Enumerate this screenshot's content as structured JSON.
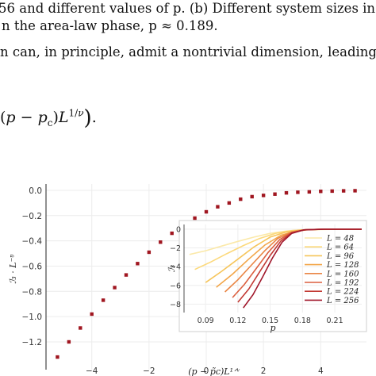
{
  "paper": {
    "line1": "56 and different values of p. (b) Different system sizes in",
    "line2": "n the area-law phase, p ≈ 0.189.",
    "line3": "n can, in principle, admit a nontrivial dimension, leading",
    "equation": "(p − pc)L1/ν)."
  },
  "chart_data": [
    {
      "type": "scatter",
      "xlabel": "(p − p̃c)L^{1/ν}",
      "ylabel": "I3 · L^{−η}",
      "xlim": [
        -5.6,
        5.6
      ],
      "ylim": [
        -1.42,
        0.05
      ],
      "x_ticks": [
        "−4",
        "−2",
        "0",
        "2",
        "4"
      ],
      "y_ticks": [
        "0.0",
        "−0.2",
        "−0.4",
        "−0.6",
        "−0.8",
        "−1.0",
        "−1.2"
      ],
      "grid": true,
      "color": "#a01620",
      "points": [
        [
          -5.2,
          -1.32
        ],
        [
          -4.8,
          -1.2
        ],
        [
          -4.4,
          -1.09
        ],
        [
          -4.0,
          -0.98
        ],
        [
          -3.6,
          -0.87
        ],
        [
          -3.2,
          -0.77
        ],
        [
          -2.8,
          -0.67
        ],
        [
          -2.4,
          -0.58
        ],
        [
          -2.0,
          -0.49
        ],
        [
          -1.6,
          -0.41
        ],
        [
          -1.2,
          -0.34
        ],
        [
          -0.8,
          -0.27
        ],
        [
          -0.4,
          -0.22
        ],
        [
          0.0,
          -0.17
        ],
        [
          0.4,
          -0.13
        ],
        [
          0.8,
          -0.1
        ],
        [
          1.2,
          -0.07
        ],
        [
          1.6,
          -0.05
        ],
        [
          2.0,
          -0.04
        ],
        [
          2.4,
          -0.03
        ],
        [
          2.8,
          -0.02
        ],
        [
          3.2,
          -0.015
        ],
        [
          3.6,
          -0.012
        ],
        [
          4.0,
          -0.008
        ],
        [
          4.4,
          -0.006
        ],
        [
          4.8,
          -0.004
        ],
        [
          5.2,
          -0.003
        ]
      ]
    },
    {
      "type": "line",
      "xlabel": "p",
      "ylabel": "I3",
      "xlim": [
        0.07,
        0.235
      ],
      "ylim": [
        -8.9,
        0.5
      ],
      "x_ticks": [
        "0.09",
        "0.12",
        "0.15",
        "0.18",
        "0.21"
      ],
      "y_ticks": [
        "0",
        "−2",
        "−4",
        "−6",
        "−8"
      ],
      "legend_position": "right",
      "series": [
        {
          "name": "L = 48",
          "color": "#fbe9a9",
          "values": [
            [
              0.075,
              -2.7
            ],
            [
              0.09,
              -2.3
            ],
            [
              0.105,
              -1.8
            ],
            [
              0.12,
              -1.3
            ],
            [
              0.135,
              -0.85
            ],
            [
              0.15,
              -0.45
            ],
            [
              0.165,
              -0.2
            ],
            [
              0.18,
              -0.08
            ],
            [
              0.2,
              -0.03
            ],
            [
              0.22,
              -0.01
            ],
            [
              0.235,
              0
            ]
          ]
        },
        {
          "name": "L = 64",
          "color": "#fcd97b",
          "values": [
            [
              0.08,
              -4.3
            ],
            [
              0.095,
              -3.5
            ],
            [
              0.11,
              -2.6
            ],
            [
              0.125,
              -1.75
            ],
            [
              0.14,
              -1.0
            ],
            [
              0.155,
              -0.45
            ],
            [
              0.17,
              -0.15
            ],
            [
              0.185,
              -0.05
            ],
            [
              0.2,
              -0.02
            ],
            [
              0.22,
              0
            ],
            [
              0.235,
              0
            ]
          ]
        },
        {
          "name": "L = 96",
          "color": "#f6c55a",
          "values": [
            [
              0.09,
              -5.7
            ],
            [
              0.105,
              -4.5
            ],
            [
              0.12,
              -3.2
            ],
            [
              0.135,
              -1.9
            ],
            [
              0.15,
              -0.85
            ],
            [
              0.165,
              -0.3
            ],
            [
              0.18,
              -0.08
            ],
            [
              0.2,
              -0.02
            ],
            [
              0.22,
              0
            ],
            [
              0.235,
              0
            ]
          ]
        },
        {
          "name": "L = 128",
          "color": "#f2a649",
          "values": [
            [
              0.1,
              -6.2
            ],
            [
              0.115,
              -4.8
            ],
            [
              0.13,
              -3.2
            ],
            [
              0.145,
              -1.7
            ],
            [
              0.16,
              -0.65
            ],
            [
              0.175,
              -0.15
            ],
            [
              0.19,
              -0.03
            ],
            [
              0.21,
              0
            ],
            [
              0.235,
              0
            ]
          ]
        },
        {
          "name": "L = 160",
          "color": "#e98544",
          "values": [
            [
              0.108,
              -6.7
            ],
            [
              0.12,
              -5.4
            ],
            [
              0.132,
              -3.9
            ],
            [
              0.145,
              -2.3
            ],
            [
              0.157,
              -1.0
            ],
            [
              0.17,
              -0.3
            ],
            [
              0.185,
              -0.05
            ],
            [
              0.2,
              0
            ],
            [
              0.235,
              0
            ]
          ]
        },
        {
          "name": "L = 192",
          "color": "#db5f3f",
          "values": [
            [
              0.115,
              -7.3
            ],
            [
              0.126,
              -5.9
            ],
            [
              0.137,
              -4.2
            ],
            [
              0.148,
              -2.5
            ],
            [
              0.159,
              -1.1
            ],
            [
              0.17,
              -0.35
            ],
            [
              0.183,
              -0.06
            ],
            [
              0.2,
              0
            ],
            [
              0.235,
              0
            ]
          ]
        },
        {
          "name": "L = 224",
          "color": "#c23a34",
          "values": [
            [
              0.12,
              -7.8
            ],
            [
              0.13,
              -6.4
            ],
            [
              0.14,
              -4.6
            ],
            [
              0.15,
              -2.8
            ],
            [
              0.16,
              -1.25
            ],
            [
              0.17,
              -0.4
            ],
            [
              0.182,
              -0.07
            ],
            [
              0.2,
              0
            ],
            [
              0.235,
              0
            ]
          ]
        },
        {
          "name": "L = 256",
          "color": "#a0162a",
          "values": [
            [
              0.125,
              -8.4
            ],
            [
              0.134,
              -7.0
            ],
            [
              0.143,
              -5.1
            ],
            [
              0.152,
              -3.1
            ],
            [
              0.161,
              -1.4
            ],
            [
              0.17,
              -0.45
            ],
            [
              0.181,
              -0.08
            ],
            [
              0.2,
              0
            ],
            [
              0.235,
              0
            ]
          ]
        }
      ]
    }
  ]
}
